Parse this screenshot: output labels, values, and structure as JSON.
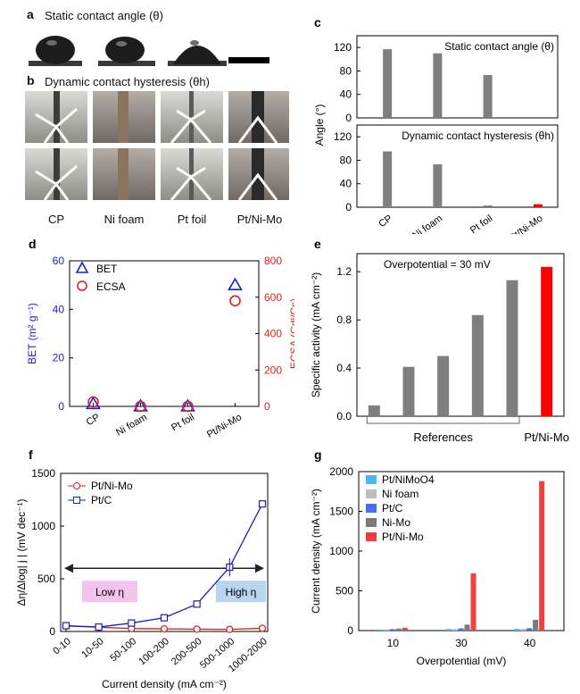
{
  "panels": {
    "a": {
      "letter": "a",
      "title": "Static contact angle (θ)"
    },
    "b": {
      "letter": "b",
      "title": "Dynamic contact hysteresis (θh)"
    },
    "samples": [
      "CP",
      "Ni foam",
      "Pt foil",
      "Pt/Ni-Mo"
    ]
  },
  "chart_data": [
    {
      "id": "c",
      "letter": "c",
      "type": "bar",
      "categories": [
        "CP",
        "Ni foam",
        "Pt foil",
        "Pt/Ni-Mo"
      ],
      "ylabel": "Angle (°)",
      "subplots": [
        {
          "title": "Static contact angle (θ)",
          "values": [
            117,
            110,
            73,
            0
          ],
          "ylim": [
            0,
            140
          ],
          "yticks": [
            0,
            40,
            80,
            120
          ]
        },
        {
          "title": "Dynamic contact hysteresis (θh)",
          "values": [
            95,
            73,
            3,
            5
          ],
          "ylim": [
            0,
            140
          ],
          "yticks": [
            0,
            40,
            80,
            120
          ]
        }
      ],
      "colors": [
        "#7f7f7f",
        "#7f7f7f",
        "#7f7f7f",
        "#ff0000"
      ]
    },
    {
      "id": "d",
      "letter": "d",
      "type": "scatter",
      "categories": [
        "CP",
        "Ni foam",
        "Pt foil",
        "Pt/Ni-Mo"
      ],
      "ylabel_left": "BET (m² g⁻¹)",
      "ylabel_right": "ECSA (Cdl/Cs)",
      "ylim_left": [
        0,
        60
      ],
      "yticks_left": [
        0,
        20,
        40,
        60
      ],
      "ylim_right": [
        0,
        800
      ],
      "yticks_right": [
        0,
        200,
        400,
        600,
        800
      ],
      "series": [
        {
          "name": "BET",
          "axis": "left",
          "marker": "triangle",
          "color": "#1c1cd6",
          "values": [
            1,
            0,
            0,
            50
          ]
        },
        {
          "name": "ECSA",
          "axis": "right",
          "marker": "circle",
          "color": "#e02020",
          "values": [
            25,
            0,
            0,
            580
          ]
        }
      ]
    },
    {
      "id": "e",
      "letter": "e",
      "type": "bar",
      "values": [
        0.09,
        0.41,
        0.5,
        0.84,
        1.13,
        1.24
      ],
      "colors": [
        "#7f7f7f",
        "#7f7f7f",
        "#7f7f7f",
        "#7f7f7f",
        "#7f7f7f",
        "#ff0000"
      ],
      "ylabel": "Specific activity (mA cm⁻²)",
      "ylim": [
        0,
        1.35
      ],
      "yticks": [
        0.0,
        0.4,
        0.8,
        1.2
      ],
      "annotation": "Overpotential = 30 mV",
      "group_label": "References",
      "highlight_label": "Pt/Ni-Mo"
    },
    {
      "id": "f",
      "letter": "f",
      "type": "line",
      "categories": [
        "0-10",
        "10-50",
        "50-100",
        "100-200",
        "200-500",
        "500-1000",
        "1000-2000"
      ],
      "xlabel": "Current density (mA cm⁻²)",
      "ylabel": "Δη/Δlog| j | (mV dec⁻¹)",
      "ylim": [
        0,
        1500
      ],
      "yticks": [
        0,
        500,
        1000,
        1500
      ],
      "series": [
        {
          "name": "Pt/Ni-Mo",
          "color": "#d02020",
          "marker": "circle",
          "values": [
            52,
            40,
            28,
            25,
            22,
            20,
            30
          ]
        },
        {
          "name": "Pt/C",
          "color": "#1c1cc0",
          "marker": "square",
          "values": [
            55,
            42,
            80,
            130,
            260,
            610,
            1210
          ]
        }
      ],
      "low_label": "Low η",
      "high_label": "High η",
      "low_color": "#f2c4ec",
      "high_color": "#b9d4ee"
    },
    {
      "id": "g",
      "letter": "g",
      "type": "bar",
      "categories": [
        "10",
        "30",
        "40"
      ],
      "xlabel": "Overpotential (mV)",
      "ylabel": "Current density (mA cm⁻²)",
      "ylim": [
        0,
        2000
      ],
      "yticks": [
        0,
        500,
        1000,
        1500,
        2000
      ],
      "series": [
        {
          "name": "Pt/NiMoO4",
          "color": "#4db8ef",
          "values": [
            14,
            20,
            22
          ]
        },
        {
          "name": "Ni foam",
          "color": "#bdbdbd",
          "values": [
            15,
            20,
            22
          ]
        },
        {
          "name": "Pt/C",
          "color": "#4a6cf0",
          "values": [
            18,
            28,
            30
          ]
        },
        {
          "name": "Ni-Mo",
          "color": "#7a7a7a",
          "values": [
            25,
            75,
            135
          ]
        },
        {
          "name": "Pt/Ni-Mo",
          "color": "#f04040",
          "values": [
            35,
            720,
            1880
          ]
        }
      ]
    }
  ]
}
